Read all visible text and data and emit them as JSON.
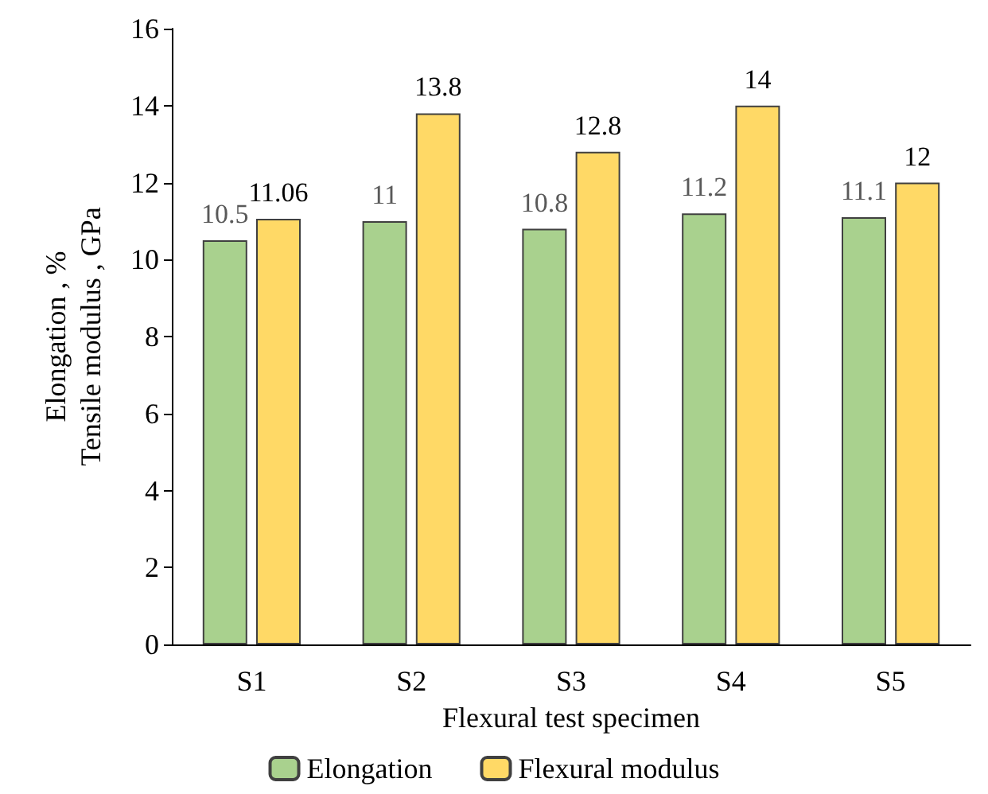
{
  "chart_data": {
    "type": "bar",
    "xlabel": "Flexural test specimen",
    "ylabel": "Elongation , %\nTensile modulus , GPa",
    "categories": [
      "S1",
      "S2",
      "S3",
      "S4",
      "S5"
    ],
    "series": [
      {
        "name": "Elongation",
        "color": "#a9d18e",
        "values": [
          10.5,
          11,
          10.8,
          11.2,
          11.1
        ]
      },
      {
        "name": "Flexural modulus",
        "color": "#ffd966",
        "values": [
          11.06,
          13.8,
          12.8,
          14,
          12
        ]
      }
    ],
    "ylim": [
      0,
      16
    ],
    "yticks": [
      0,
      2,
      4,
      6,
      8,
      10,
      12,
      14,
      16
    ],
    "grid": false,
    "legend": "bottom",
    "data_labels": true
  }
}
